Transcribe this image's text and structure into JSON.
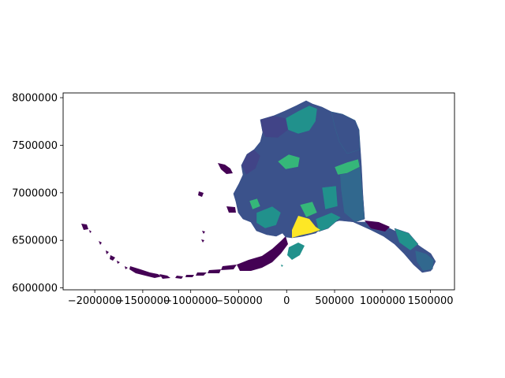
{
  "figure": {
    "background": "#ffffff"
  },
  "map": {
    "title": "",
    "axes": {
      "x_ticks": [
        -2000000,
        -1500000,
        -1000000,
        -500000,
        0,
        500000,
        1000000,
        1500000
      ],
      "x_tick_labels": [
        "−2000000",
        "−1500000",
        "−1000000",
        "−500000",
        "0",
        "500000",
        "1000000",
        "1500000"
      ],
      "y_ticks": [
        6000000,
        6500000,
        7000000,
        7500000,
        8000000
      ],
      "y_tick_labels": [
        "6000000",
        "6500000",
        "7000000",
        "7500000",
        "8000000"
      ],
      "xlim": [
        -2330000,
        1750000
      ],
      "ylim": [
        5980000,
        8050000
      ]
    },
    "colormap": "viridis",
    "colors": {
      "dark_purple": "#440154",
      "blue": "#3b528b",
      "teal": "#21918c",
      "green": "#35b779",
      "light_green": "#5ec962",
      "yellow": "#fde725"
    }
  }
}
